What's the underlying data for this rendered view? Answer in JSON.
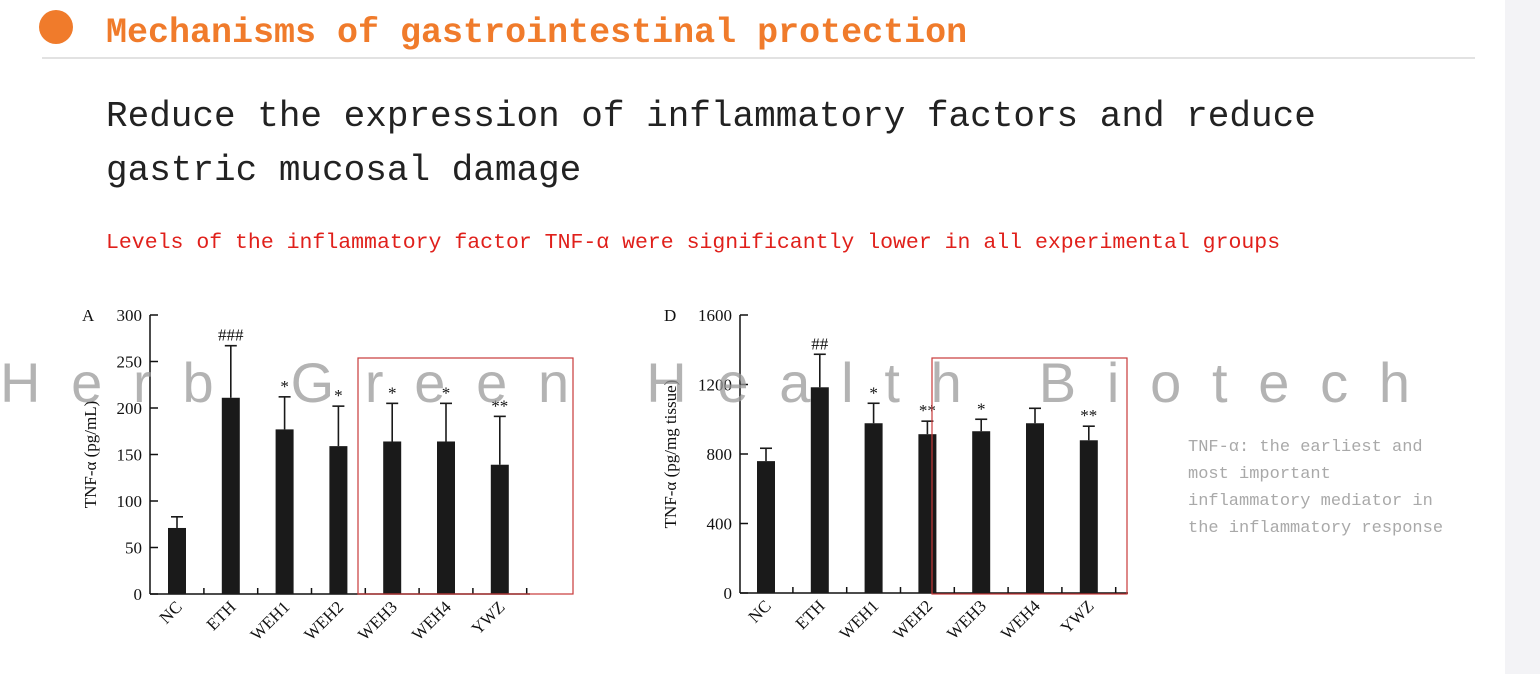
{
  "header": {
    "title": "Mechanisms of gastrointestinal protection"
  },
  "subtitle": [
    "Reduce the expression of inflammatory factors and reduce",
    "gastric mucosal damage"
  ],
  "highlight": "Levels of the inflammatory factor TNF-α were significantly lower in all experimental groups",
  "note": [
    "TNF-α: the earliest and",
    "most important",
    "inflammatory mediator in",
    "the inflammatory response"
  ],
  "watermark": "Herb Green Health Biotech",
  "chart_data": [
    {
      "type": "bar",
      "panel_label": "A",
      "y_label": "TNF-α (pg/mL)",
      "categories": [
        "NC",
        "ETH",
        "WEH1",
        "WEH2",
        "WEH3",
        "WEH4",
        "YWZ"
      ],
      "values": [
        71,
        211,
        177,
        159,
        164,
        164,
        139
      ],
      "errors": [
        12,
        56,
        35,
        43,
        41,
        41,
        52
      ],
      "annotations": [
        null,
        "###",
        "*",
        "*",
        "*",
        "*",
        "**"
      ],
      "color": "#1a1a1a",
      "ylim": [
        0,
        300
      ],
      "yticks": [
        0,
        50,
        100,
        150,
        200,
        250,
        300
      ]
    },
    {
      "type": "bar",
      "panel_label": "D",
      "y_label": "TNF-α (pg/mg tissue)",
      "categories": [
        "NC",
        "ETH",
        "WEH1",
        "WEH2",
        "WEH3",
        "WEH4",
        "YWZ"
      ],
      "values": [
        759,
        1184,
        977,
        914,
        931,
        977,
        879
      ],
      "errors": [
        74,
        190,
        115,
        75,
        69,
        86,
        81
      ],
      "annotations": [
        null,
        "##",
        "*",
        "**",
        "*",
        null,
        "**"
      ],
      "color": "#1a1a1a",
      "ylim": [
        0,
        1600
      ],
      "yticks": [
        0,
        400,
        800,
        1200,
        1600
      ]
    }
  ]
}
